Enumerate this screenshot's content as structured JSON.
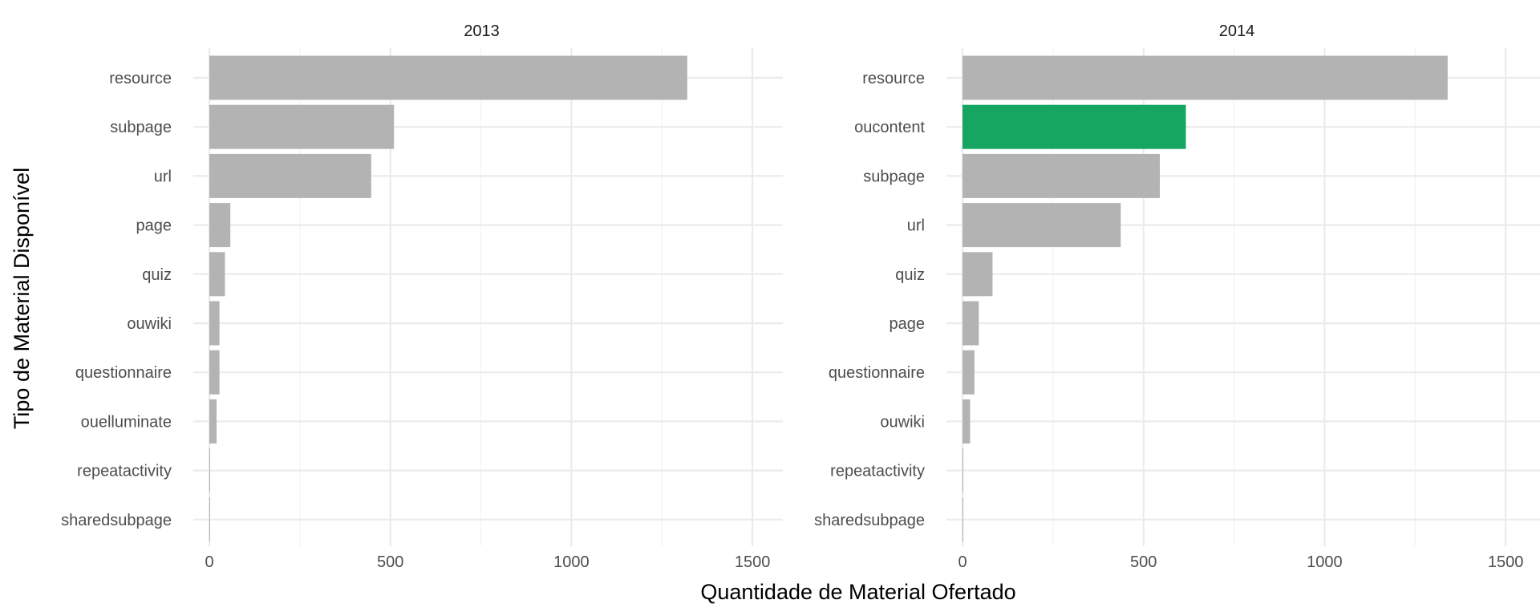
{
  "chart_data": {
    "type": "bar",
    "orientation": "horizontal",
    "xlabel": "Quantidade de Material Ofertado",
    "ylabel": "Tipo de Material Disponível",
    "xlim": [
      0,
      1500
    ],
    "x_ticks": [
      0,
      500,
      1000,
      1500
    ],
    "x_tick_labels": [
      "0",
      "500",
      "1000",
      "1500"
    ],
    "grid": true,
    "colors": {
      "default": "#b3b3b3",
      "highlight": "#16a661"
    },
    "panels": [
      {
        "title": "2013",
        "categories": [
          "resource",
          "subpage",
          "url",
          "page",
          "quiz",
          "ouwiki",
          "questionnaire",
          "ouelluminate",
          "repeatactivity",
          "sharedsubpage"
        ],
        "values": [
          1320,
          510,
          447,
          58,
          43,
          28,
          28,
          20,
          2,
          2
        ],
        "highlight": []
      },
      {
        "title": "2014",
        "categories": [
          "resource",
          "oucontent",
          "subpage",
          "url",
          "quiz",
          "page",
          "questionnaire",
          "ouwiki",
          "repeatactivity",
          "sharedsubpage"
        ],
        "values": [
          1340,
          617,
          545,
          437,
          83,
          45,
          33,
          21,
          2,
          2
        ],
        "highlight": [
          "oucontent"
        ]
      }
    ]
  }
}
